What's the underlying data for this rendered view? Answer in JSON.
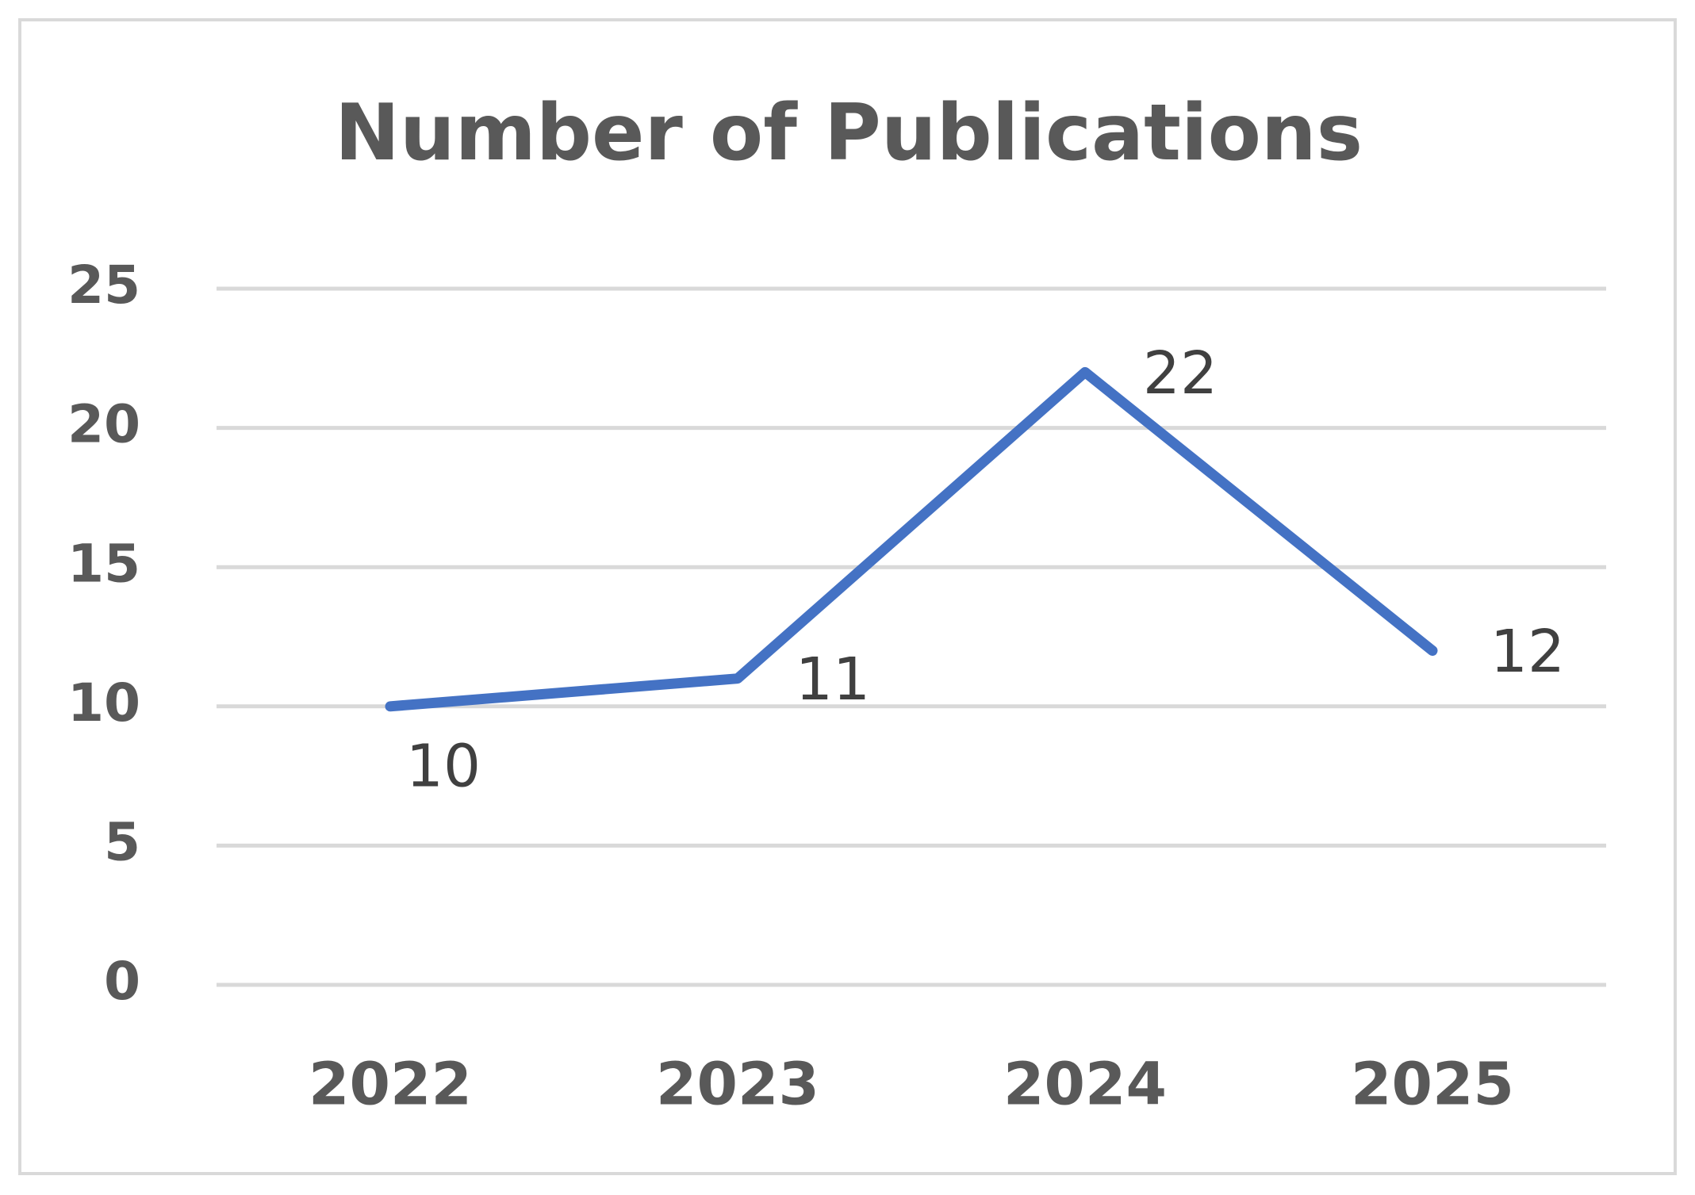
{
  "chart_data": {
    "type": "line",
    "title": "Number of Publications",
    "categories": [
      "2022",
      "2023",
      "2024",
      "2025"
    ],
    "values": [
      10,
      11,
      22,
      12
    ],
    "color": "#4472c4",
    "ylim": [
      0,
      25
    ],
    "yticks": [
      0,
      5,
      10,
      15,
      20,
      25
    ],
    "grid": true
  }
}
